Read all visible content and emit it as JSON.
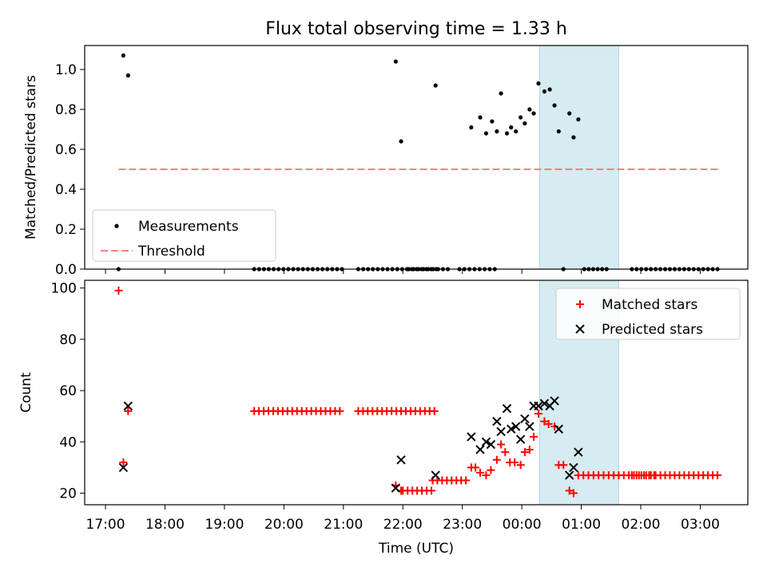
{
  "chart_data": {
    "type": "scatter",
    "title": "Flux total observing time = 1.33 h",
    "xlabel": "Time (UTC)",
    "x_unit": "hours since 17:00 UTC",
    "xlim": [
      -0.35,
      10.8
    ],
    "xticks": [
      {
        "value": 0,
        "label": "17:00"
      },
      {
        "value": 1,
        "label": "18:00"
      },
      {
        "value": 2,
        "label": "19:00"
      },
      {
        "value": 3,
        "label": "20:00"
      },
      {
        "value": 4,
        "label": "21:00"
      },
      {
        "value": 5,
        "label": "22:00"
      },
      {
        "value": 6,
        "label": "23:00"
      },
      {
        "value": 7,
        "label": "00:00"
      },
      {
        "value": 8,
        "label": "01:00"
      },
      {
        "value": 9,
        "label": "02:00"
      },
      {
        "value": 10,
        "label": "03:00"
      }
    ],
    "shaded_interval": {
      "x0": 7.3,
      "x1": 8.63,
      "color": "#add8e6"
    },
    "panels": [
      {
        "ylabel": "Matched/Predicted stars",
        "ylim": [
          0,
          1.12
        ],
        "yticks": [
          {
            "value": 0.0,
            "label": "0.0"
          },
          {
            "value": 0.2,
            "label": "0.2"
          },
          {
            "value": 0.4,
            "label": "0.4"
          },
          {
            "value": 0.6,
            "label": "0.6"
          },
          {
            "value": 0.8,
            "label": "0.8"
          },
          {
            "value": 1.0,
            "label": "1.0"
          }
        ],
        "legend": {
          "position": "lower-left",
          "entries": [
            {
              "label": "Measurements",
              "marker": "dot",
              "color": "#000000"
            },
            {
              "label": "Threshold",
              "marker": "dashed-line",
              "color": "#ff7f7f"
            }
          ]
        },
        "series": [
          {
            "name": "Measurements",
            "marker": "dot",
            "color": "#000000",
            "points": [
              [
                0.22,
                0.0
              ],
              [
                0.3,
                1.07
              ],
              [
                0.38,
                0.97
              ],
              [
                4.88,
                1.04
              ],
              [
                4.97,
                0.64
              ],
              [
                5.55,
                0.92
              ],
              [
                6.15,
                0.71
              ],
              [
                6.3,
                0.76
              ],
              [
                6.4,
                0.68
              ],
              [
                6.5,
                0.74
              ],
              [
                6.58,
                0.69
              ],
              [
                6.65,
                0.88
              ],
              [
                6.75,
                0.68
              ],
              [
                6.82,
                0.71
              ],
              [
                6.9,
                0.69
              ],
              [
                6.98,
                0.76
              ],
              [
                7.05,
                0.73
              ],
              [
                7.13,
                0.8
              ],
              [
                7.2,
                0.78
              ],
              [
                7.28,
                0.93
              ],
              [
                7.38,
                0.89
              ],
              [
                7.47,
                0.9
              ],
              [
                7.55,
                0.82
              ],
              [
                7.62,
                0.69
              ],
              [
                7.7,
                0.0
              ],
              [
                7.8,
                0.78
              ],
              [
                7.87,
                0.66
              ],
              [
                7.95,
                0.75
              ]
            ],
            "zero_runs": [
              [
                2.5,
                4.0,
                0.082
              ],
              [
                4.25,
                5.6,
                0.082
              ],
              [
                5.1,
                5.8,
                0.082
              ],
              [
                5.95,
                6.6,
                0.085
              ],
              [
                8.05,
                8.45,
                0.075
              ],
              [
                8.85,
                10.3,
                0.08
              ]
            ]
          },
          {
            "name": "Threshold",
            "type": "line",
            "style": "dashed",
            "color": "#ff7f7f",
            "points": [
              [
                0.22,
                0.5
              ],
              [
                10.32,
                0.5
              ]
            ]
          }
        ]
      },
      {
        "ylabel": "Count",
        "ylim": [
          15.5,
          103
        ],
        "yticks": [
          {
            "value": 20,
            "label": "20"
          },
          {
            "value": 40,
            "label": "40"
          },
          {
            "value": 60,
            "label": "60"
          },
          {
            "value": 80,
            "label": "80"
          },
          {
            "value": 100,
            "label": "100"
          }
        ],
        "legend": {
          "position": "upper-right",
          "entries": [
            {
              "label": "Matched stars",
              "marker": "plus",
              "color": "#ff0000"
            },
            {
              "label": "Predicted stars",
              "marker": "x",
              "color": "#000000"
            }
          ]
        },
        "series": [
          {
            "name": "Matched stars",
            "marker": "plus",
            "color": "#ff0000",
            "points": [
              [
                0.22,
                99
              ],
              [
                0.3,
                32
              ],
              [
                0.38,
                52
              ],
              [
                4.88,
                23
              ],
              [
                4.97,
                21
              ],
              [
                6.15,
                30
              ],
              [
                6.22,
                30
              ],
              [
                6.3,
                28
              ],
              [
                6.4,
                27
              ],
              [
                6.48,
                29
              ],
              [
                6.58,
                33
              ],
              [
                6.65,
                39
              ],
              [
                6.72,
                36
              ],
              [
                6.8,
                32
              ],
              [
                6.88,
                32
              ],
              [
                6.98,
                31
              ],
              [
                7.05,
                36
              ],
              [
                7.13,
                37
              ],
              [
                7.2,
                42
              ],
              [
                7.28,
                51
              ],
              [
                7.38,
                48
              ],
              [
                7.45,
                47
              ],
              [
                7.55,
                46
              ],
              [
                7.62,
                31
              ],
              [
                7.7,
                31
              ],
              [
                7.8,
                21
              ],
              [
                7.87,
                20
              ]
            ],
            "runs": [
              [
                2.5,
                4.0,
                52,
                0.08
              ],
              [
                4.25,
                5.6,
                52,
                0.08
              ],
              [
                5.0,
                5.5,
                21,
                0.08
              ],
              [
                5.5,
                6.1,
                25,
                0.08
              ],
              [
                7.95,
                9.3,
                27,
                0.085
              ],
              [
                8.85,
                10.32,
                27,
                0.08
              ]
            ]
          },
          {
            "name": "Predicted stars",
            "marker": "x",
            "color": "#000000",
            "points": [
              [
                0.3,
                30
              ],
              [
                0.38,
                54
              ],
              [
                4.88,
                22
              ],
              [
                4.97,
                33
              ],
              [
                5.55,
                27
              ],
              [
                6.15,
                42
              ],
              [
                6.3,
                37
              ],
              [
                6.4,
                40
              ],
              [
                6.48,
                39
              ],
              [
                6.58,
                48
              ],
              [
                6.65,
                44
              ],
              [
                6.75,
                53
              ],
              [
                6.82,
                45
              ],
              [
                6.9,
                46
              ],
              [
                6.98,
                41
              ],
              [
                7.05,
                49
              ],
              [
                7.13,
                46
              ],
              [
                7.2,
                54
              ],
              [
                7.28,
                54
              ],
              [
                7.38,
                55
              ],
              [
                7.47,
                54
              ],
              [
                7.55,
                56
              ],
              [
                7.62,
                45
              ],
              [
                7.8,
                27
              ],
              [
                7.87,
                30
              ],
              [
                7.95,
                36
              ]
            ]
          }
        ]
      }
    ]
  }
}
